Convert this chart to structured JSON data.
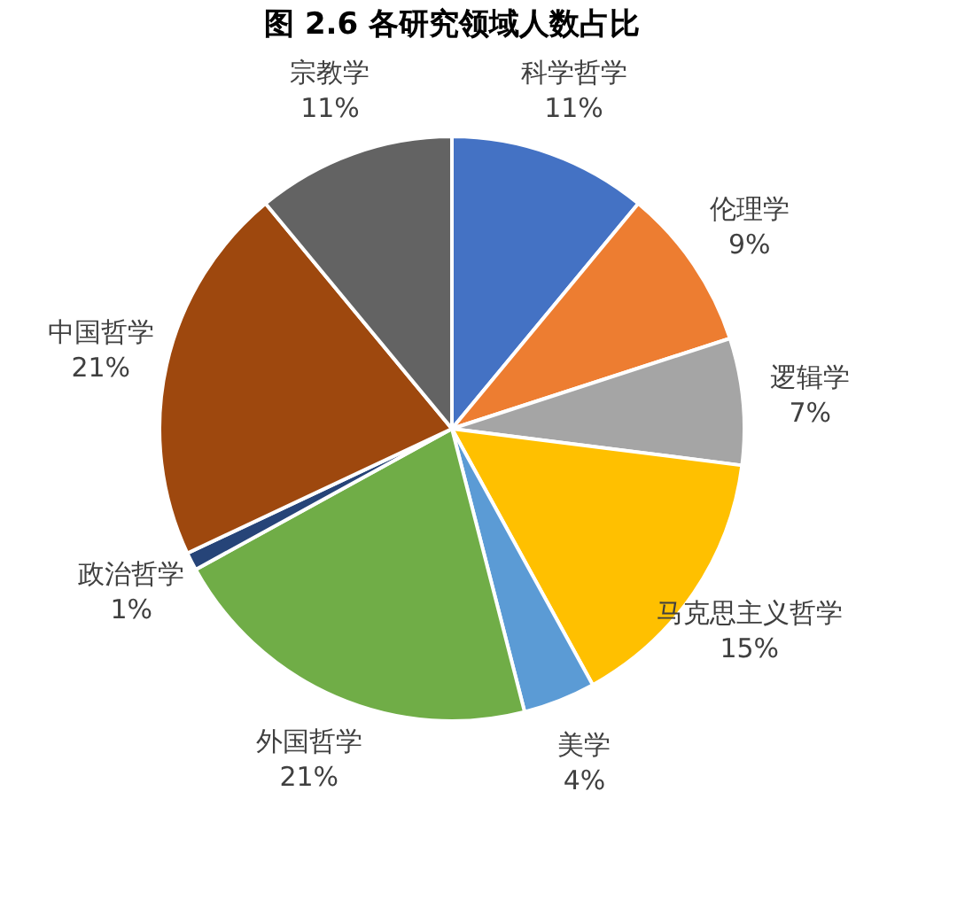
{
  "chart_data": {
    "type": "pie",
    "title": "图 2.6 各研究领域人数占比",
    "categories": [
      "科学哲学",
      "伦理学",
      "逻辑学",
      "马克思主义哲学",
      "美学",
      "外国哲学",
      "政治哲学",
      "中国哲学",
      "宗教学"
    ],
    "values": [
      11,
      9,
      7,
      15,
      4,
      21,
      1,
      21,
      11
    ],
    "value_labels": [
      "11%",
      "9%",
      "7%",
      "15%",
      "4%",
      "21%",
      "1%",
      "21%",
      "11%"
    ],
    "colors": [
      "#4472c4",
      "#ed7d31",
      "#a5a5a5",
      "#ffc000",
      "#5b9bd5",
      "#70ad47",
      "#264478",
      "#9e480e",
      "#636363"
    ],
    "legend": false
  }
}
